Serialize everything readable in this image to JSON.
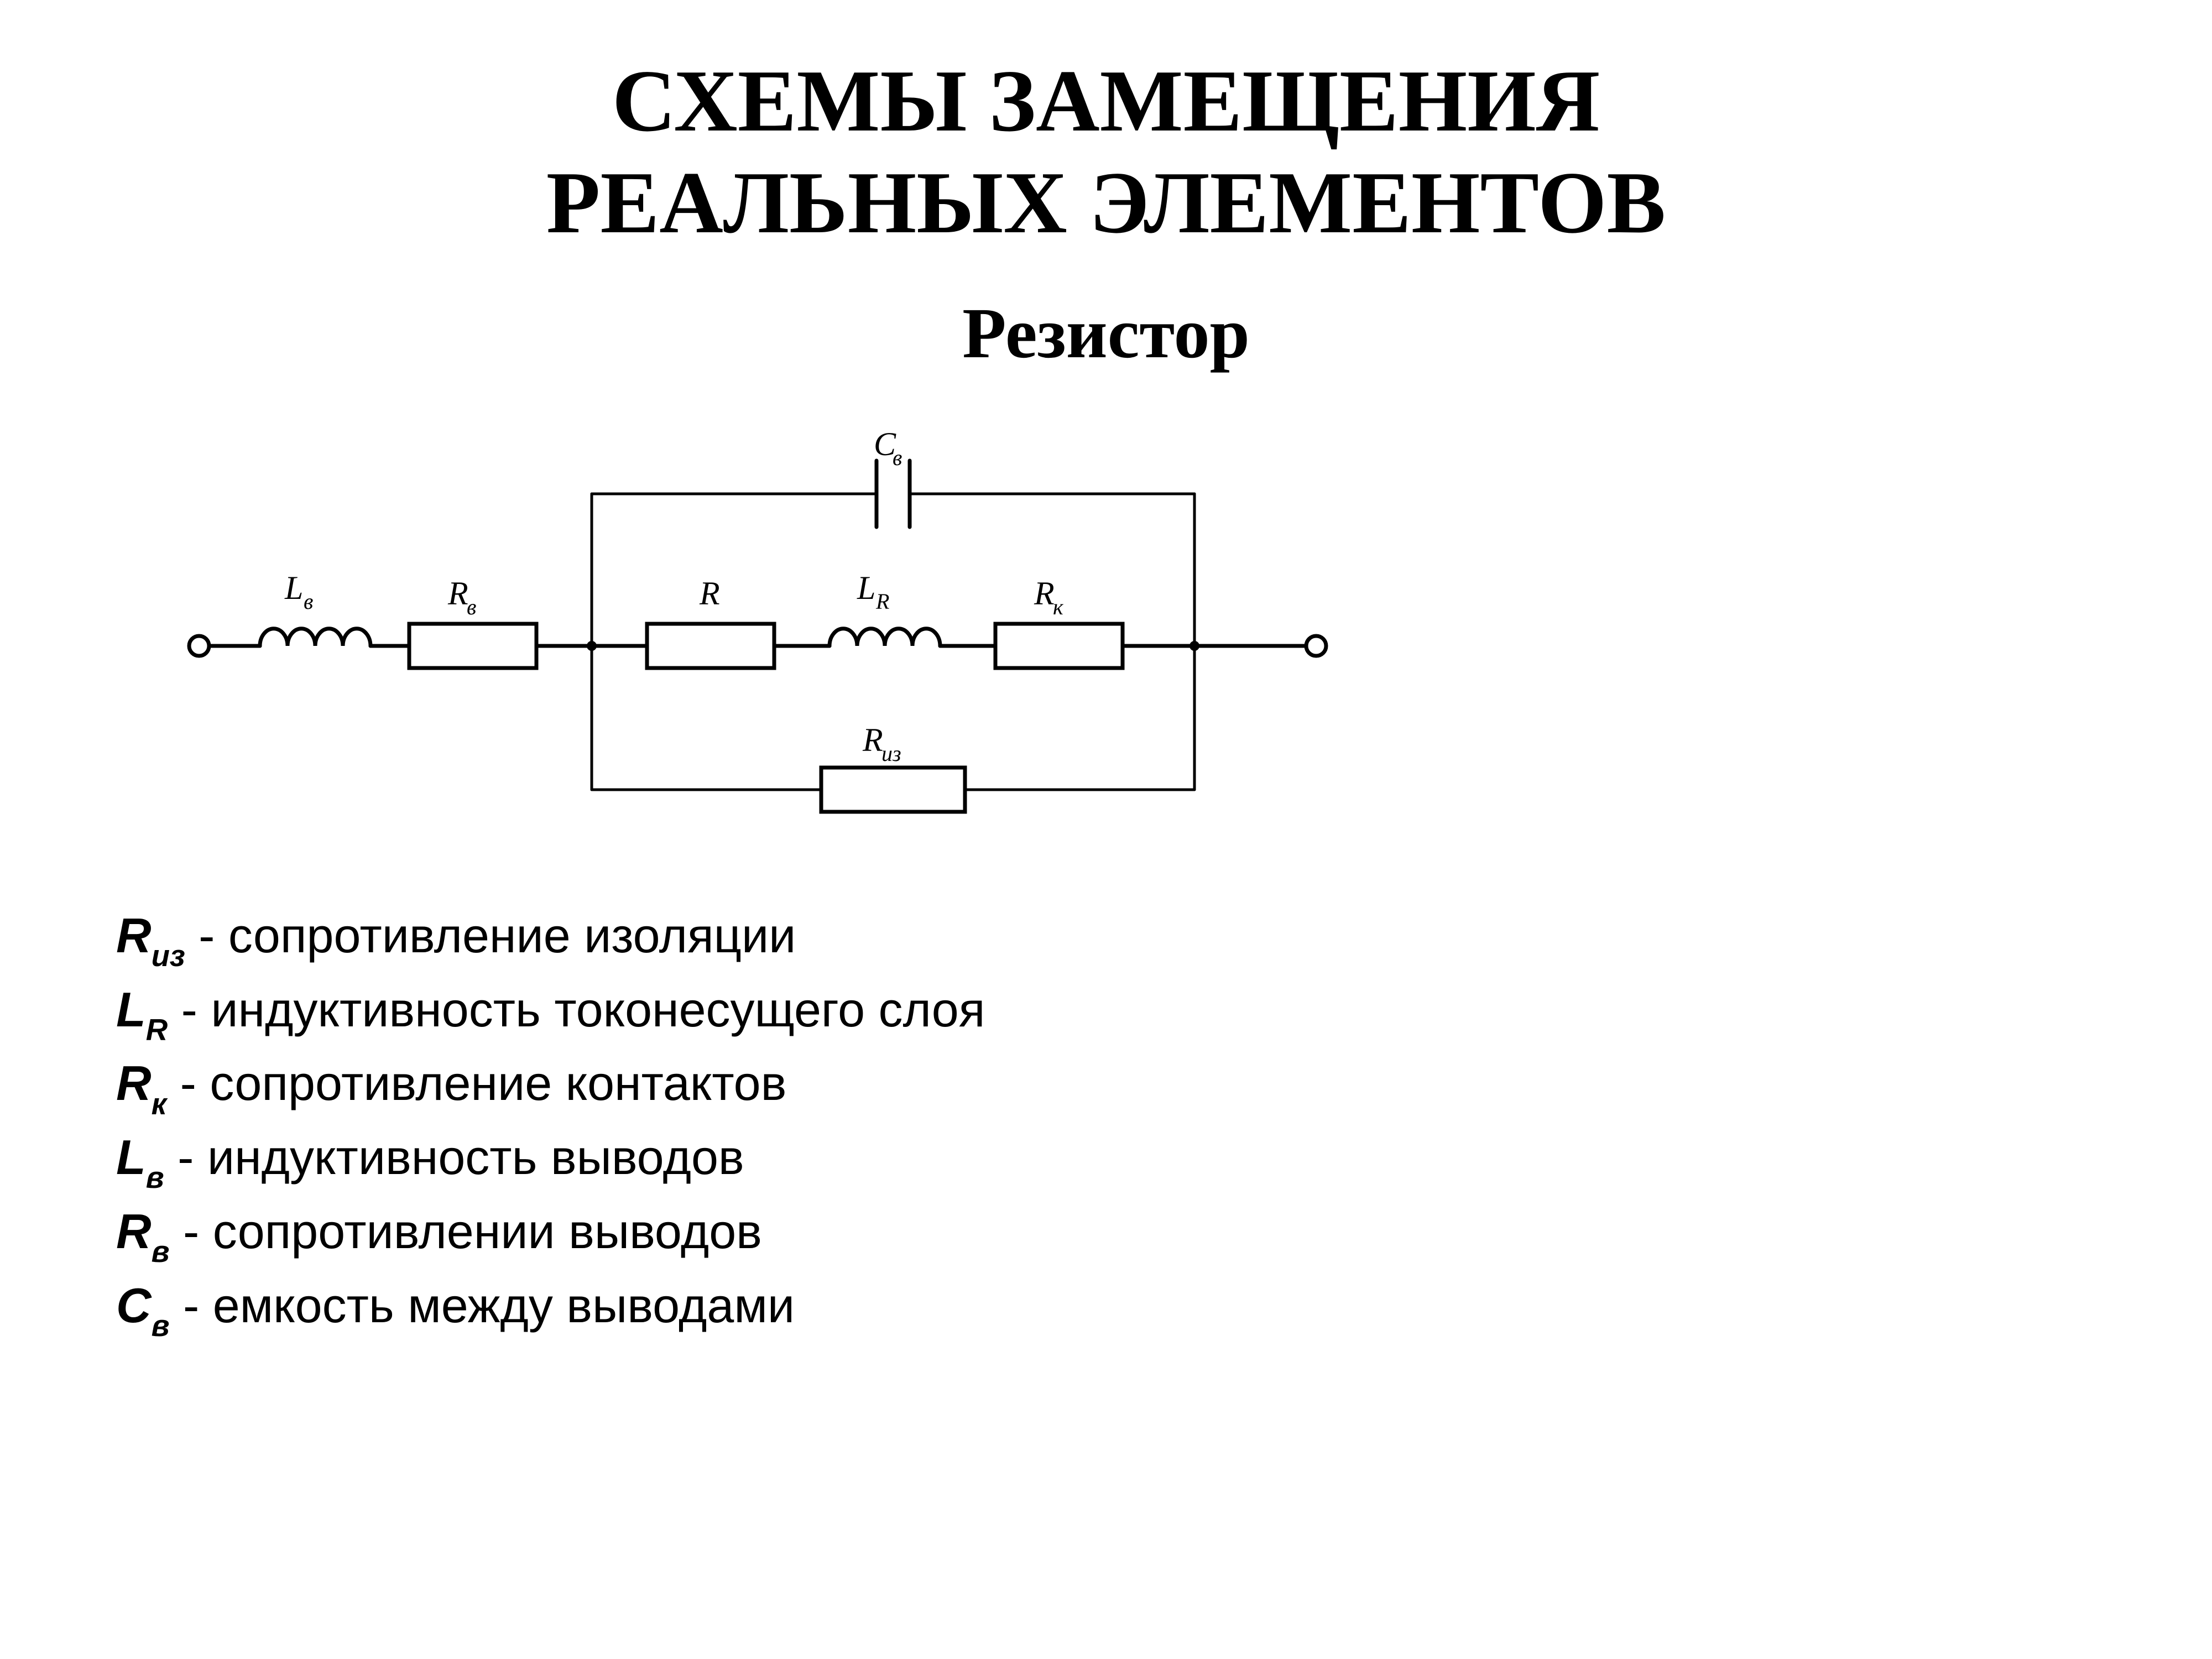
{
  "title_line1": "СХЕМЫ ЗАМЕЩЕНИЯ",
  "title_line2": "РЕАЛЬНЫХ ЭЛЕМЕНТОВ",
  "subtitle": "Резистор",
  "colors": {
    "background": "#ffffff",
    "stroke": "#000000",
    "text": "#000000"
  },
  "diagram": {
    "type": "circuit-schematic",
    "stroke_color": "#000000",
    "stroke_width": 7,
    "thin_stroke_width": 5,
    "terminal_radius": 18,
    "node_radius": 9,
    "component_labels": {
      "Lv": {
        "main": "L",
        "sub": "в"
      },
      "Rv": {
        "main": "R",
        "sub": "в"
      },
      "R": {
        "main": "R",
        "sub": ""
      },
      "LR": {
        "main": "L",
        "sub": "R"
      },
      "Rk": {
        "main": "R",
        "sub": "к"
      },
      "Cv": {
        "main": "C",
        "sub": "в"
      },
      "Riz": {
        "main": "R",
        "sub": "из"
      }
    }
  },
  "legend": [
    {
      "sym": "R",
      "sub": "из",
      "text": " - сопротивление изоляции"
    },
    {
      "sym": "L",
      "sub": "R",
      "text": " - индуктивность токонесущего слоя"
    },
    {
      "sym": "R",
      "sub": "к",
      "text": " - сопротивление контактов"
    },
    {
      "sym": "L",
      "sub": "в",
      "text": " - индуктивность выводов"
    },
    {
      "sym": "R",
      "sub": "в",
      "text": " - сопротивлении выводов"
    },
    {
      "sym": "C",
      "sub": "в",
      "text": " - емкость между выводами"
    }
  ]
}
